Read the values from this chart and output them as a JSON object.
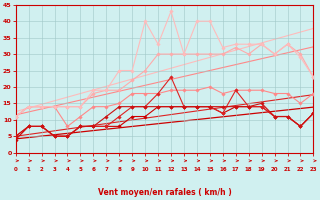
{
  "x": [
    0,
    1,
    2,
    3,
    4,
    5,
    6,
    7,
    8,
    9,
    10,
    11,
    12,
    13,
    14,
    15,
    16,
    17,
    18,
    19,
    20,
    21,
    22,
    23
  ],
  "series": [
    {
      "y": [
        4,
        8,
        8,
        5,
        5,
        8,
        8,
        8,
        8,
        11,
        11,
        14,
        14,
        14,
        14,
        14,
        12,
        14,
        14,
        14,
        11,
        11,
        8,
        12
      ],
      "color": "#cc0000",
      "lw": 0.8,
      "marker": "D",
      "ms": 1.8,
      "zorder": 4
    },
    {
      "y": [
        5,
        8,
        8,
        5,
        5,
        8,
        8,
        8,
        11,
        14,
        14,
        18,
        23,
        14,
        14,
        14,
        12,
        19,
        14,
        14,
        11,
        11,
        8,
        12
      ],
      "color": "#dd2222",
      "lw": 0.8,
      "marker": "D",
      "ms": 1.8,
      "zorder": 4
    },
    {
      "y": [
        5,
        8,
        8,
        5,
        5,
        8,
        8,
        11,
        14,
        14,
        14,
        14,
        14,
        14,
        14,
        14,
        14,
        14,
        14,
        15,
        11,
        11,
        8,
        12
      ],
      "color": "#cc1111",
      "lw": 0.8,
      "marker": "D",
      "ms": 1.8,
      "zorder": 4
    },
    {
      "y": [
        11,
        14,
        14,
        14,
        8,
        11,
        14,
        14,
        15,
        18,
        18,
        18,
        19,
        19,
        19,
        20,
        18,
        19,
        19,
        19,
        18,
        18,
        15,
        18
      ],
      "color": "#ff8888",
      "lw": 0.8,
      "marker": "D",
      "ms": 1.8,
      "zorder": 3
    },
    {
      "y": [
        11,
        14,
        14,
        14,
        14,
        14,
        18,
        19,
        19,
        22,
        25,
        30,
        30,
        30,
        30,
        30,
        30,
        32,
        30,
        33,
        30,
        33,
        30,
        23
      ],
      "color": "#ffaaaa",
      "lw": 0.8,
      "marker": "D",
      "ms": 1.8,
      "zorder": 3
    },
    {
      "y": [
        11,
        14,
        14,
        14,
        14,
        14,
        19,
        19,
        25,
        25,
        40,
        33,
        43,
        30,
        40,
        40,
        32,
        33,
        33,
        33,
        30,
        33,
        29,
        23
      ],
      "color": "#ffbbbb",
      "lw": 0.8,
      "marker": "D",
      "ms": 1.8,
      "zorder": 3
    }
  ],
  "trend_lines": [
    {
      "slope": 0.42,
      "intercept": 4.2,
      "color": "#cc0000",
      "lw": 0.9
    },
    {
      "slope": 0.55,
      "intercept": 5.0,
      "color": "#dd2222",
      "lw": 0.8
    },
    {
      "slope": 0.9,
      "intercept": 11.5,
      "color": "#ff8888",
      "lw": 0.8
    },
    {
      "slope": 1.1,
      "intercept": 12.5,
      "color": "#ffbbbb",
      "lw": 0.8
    }
  ],
  "xlabel": "Vent moyen/en rafales ( km/h )",
  "xlim": [
    0,
    23
  ],
  "ylim": [
    0,
    45
  ],
  "yticks": [
    0,
    5,
    10,
    15,
    20,
    25,
    30,
    35,
    40,
    45
  ],
  "xticks": [
    0,
    1,
    2,
    3,
    4,
    5,
    6,
    7,
    8,
    9,
    10,
    11,
    12,
    13,
    14,
    15,
    16,
    17,
    18,
    19,
    20,
    21,
    22,
    23
  ],
  "bg_color": "#d0f0f0",
  "grid_color": "#a0c8c8",
  "axis_color": "#cc0000",
  "label_color": "#cc0000",
  "wind_arrow_color": "#cc0000"
}
